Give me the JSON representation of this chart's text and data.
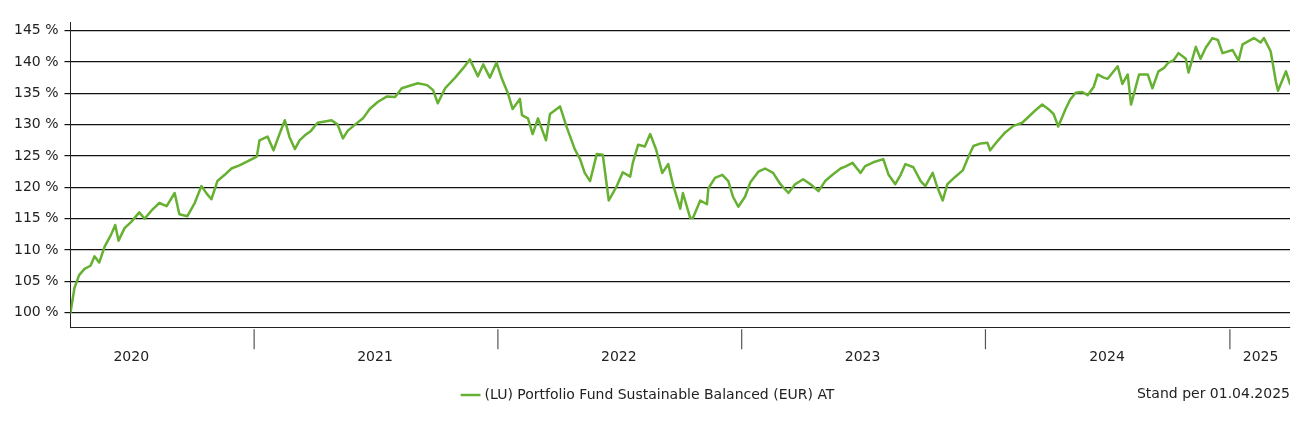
{
  "chart_data": {
    "type": "line",
    "xlim": [
      "2020-04-01",
      "2025-04-01"
    ],
    "ylim": [
      97.7,
      146.3
    ],
    "xticks": [
      {
        "value": "2020-07-01",
        "label": "2020"
      },
      {
        "value": "2021-07-01",
        "label": "2021"
      },
      {
        "value": "2022-07-01",
        "label": "2022"
      },
      {
        "value": "2023-07-01",
        "label": "2023"
      },
      {
        "value": "2024-07-01",
        "label": "2024"
      },
      {
        "value": "2025-02-16",
        "label": "2025"
      }
    ],
    "yticks": [
      {
        "value": 100,
        "label": "100 %"
      },
      {
        "value": 105,
        "label": "105 %"
      },
      {
        "value": 110,
        "label": "110 %"
      },
      {
        "value": 115,
        "label": "115 %"
      },
      {
        "value": 120,
        "label": "120 %"
      },
      {
        "value": 125,
        "label": "125 %"
      },
      {
        "value": 130,
        "label": "130 %"
      },
      {
        "value": 135,
        "label": "135 %"
      },
      {
        "value": 140,
        "label": "140 %"
      },
      {
        "value": 145,
        "label": "145 %"
      }
    ],
    "grid": "y",
    "legend": "bottom",
    "marker": "none",
    "line_style": "solid",
    "annotations": [
      "Stand per 01.04.2025"
    ],
    "x": [
      "2020-04-01",
      "2020-04-07",
      "2020-04-14",
      "2020-04-22",
      "2020-05-01",
      "2020-05-07",
      "2020-05-14",
      "2020-05-22",
      "2020-06-01",
      "2020-06-07",
      "2020-06-12",
      "2020-06-21",
      "2020-07-01",
      "2020-07-13",
      "2020-07-21",
      "2020-08-02",
      "2020-08-12",
      "2020-08-23",
      "2020-09-04",
      "2020-09-11",
      "2020-09-23",
      "2020-10-04",
      "2020-10-14",
      "2020-10-22",
      "2020-10-29",
      "2020-11-07",
      "2020-11-18",
      "2020-11-28",
      "2020-12-10",
      "2020-12-25",
      "2021-01-05",
      "2021-01-09",
      "2021-01-21",
      "2021-01-30",
      "2021-02-08",
      "2021-02-16",
      "2021-02-23",
      "2021-03-03",
      "2021-03-10",
      "2021-03-18",
      "2021-03-27",
      "2021-04-06",
      "2021-04-17",
      "2021-04-27",
      "2021-05-06",
      "2021-05-14",
      "2021-05-21",
      "2021-06-01",
      "2021-06-13",
      "2021-06-23",
      "2021-07-05",
      "2021-07-19",
      "2021-07-31",
      "2021-08-10",
      "2021-08-22",
      "2021-09-03",
      "2021-09-17",
      "2021-09-26",
      "2021-10-03",
      "2021-10-14",
      "2021-10-29",
      "2021-11-10",
      "2021-11-20",
      "2021-12-02",
      "2021-12-10",
      "2021-12-20",
      "2021-12-30",
      "2022-01-07",
      "2022-01-16",
      "2022-01-23",
      "2022-02-03",
      "2022-02-06",
      "2022-02-15",
      "2022-02-22",
      "2022-03-02",
      "2022-03-14",
      "2022-03-20",
      "2022-04-04",
      "2022-04-14",
      "2022-04-26",
      "2022-05-04",
      "2022-05-11",
      "2022-05-19",
      "2022-05-29",
      "2022-06-07",
      "2022-06-16",
      "2022-06-28",
      "2022-07-07",
      "2022-07-18",
      "2022-07-22",
      "2022-07-30",
      "2022-08-09",
      "2022-08-17",
      "2022-08-26",
      "2022-09-04",
      "2022-09-13",
      "2022-09-20",
      "2022-10-01",
      "2022-10-05",
      "2022-10-16",
      "2022-10-20",
      "2022-10-31",
      "2022-11-10",
      "2022-11-12",
      "2022-11-22",
      "2022-12-03",
      "2022-12-12",
      "2022-12-19",
      "2022-12-27",
      "2023-01-06",
      "2023-01-14",
      "2023-01-26",
      "2023-02-05",
      "2023-02-17",
      "2023-02-28",
      "2023-03-12",
      "2023-03-22",
      "2023-04-03",
      "2023-04-14",
      "2023-04-26",
      "2023-05-06",
      "2023-05-17",
      "2023-05-29",
      "2023-06-05",
      "2023-06-16",
      "2023-06-28",
      "2023-07-05",
      "2023-07-17",
      "2023-08-01",
      "2023-08-09",
      "2023-08-19",
      "2023-08-27",
      "2023-09-03",
      "2023-09-15",
      "2023-09-26",
      "2023-10-03",
      "2023-10-14",
      "2023-10-21",
      "2023-10-29",
      "2023-11-05",
      "2023-11-17",
      "2023-11-28",
      "2023-12-07",
      "2023-12-14",
      "2023-12-25",
      "2024-01-04",
      "2024-01-08",
      "2024-01-20",
      "2024-01-31",
      "2024-02-12",
      "2024-02-25",
      "2024-03-08",
      "2024-03-16",
      "2024-03-26",
      "2024-04-04",
      "2024-04-12",
      "2024-04-19",
      "2024-04-30",
      "2024-05-07",
      "2024-05-15",
      "2024-05-25",
      "2024-06-02",
      "2024-06-11",
      "2024-06-17",
      "2024-06-26",
      "2024-07-02",
      "2024-07-11",
      "2024-07-17",
      "2024-07-24",
      "2024-08-01",
      "2024-08-06",
      "2024-08-13",
      "2024-08-18",
      "2024-08-31",
      "2024-09-07",
      "2024-09-16",
      "2024-09-24",
      "2024-10-01",
      "2024-10-09",
      "2024-10-16",
      "2024-10-27",
      "2024-10-31",
      "2024-11-11",
      "2024-11-18",
      "2024-11-26",
      "2024-12-06",
      "2024-12-14",
      "2024-12-21",
      "2025-01-05",
      "2025-01-14",
      "2025-01-20",
      "2025-02-06",
      "2025-02-16",
      "2025-02-21",
      "2025-03-03",
      "2025-03-11",
      "2025-03-14",
      "2025-03-26",
      "2025-04-01"
    ],
    "series": [
      {
        "name": "(LU) Portfolio Fund Sustainable Balanced (EUR) AT",
        "color": "#66b032",
        "values": [
          100,
          104,
          106,
          107,
          107.5,
          109,
          108,
          110.5,
          112.5,
          114,
          111.5,
          113.5,
          114.5,
          116,
          115,
          116.5,
          117.5,
          117,
          119.1,
          115.7,
          115.4,
          117.5,
          120.2,
          119,
          118.1,
          121,
          122,
          123,
          123.5,
          124.3,
          124.9,
          127.5,
          128.1,
          125.9,
          128.5,
          130.7,
          128,
          126.1,
          127.5,
          128.3,
          129,
          130.3,
          130.5,
          130.7,
          130,
          127.8,
          129,
          130,
          131,
          132.5,
          133.6,
          134.5,
          134.4,
          135.8,
          136.2,
          136.6,
          136.3,
          135.5,
          133.4,
          135.8,
          137.5,
          139,
          140.4,
          137.7,
          139.6,
          137.5,
          139.9,
          137.3,
          135,
          132.5,
          134.1,
          131.5,
          131,
          128.5,
          131,
          127.5,
          131.7,
          132.9,
          129.6,
          126.1,
          124.5,
          122.3,
          121,
          125.3,
          125.2,
          117.9,
          120.2,
          122.4,
          121.7,
          123.9,
          126.8,
          126.5,
          128.5,
          126,
          122.3,
          123.7,
          120.5,
          116.6,
          119.1,
          115.1,
          115.1,
          117.9,
          117.3,
          119.8,
          121.5,
          122,
          121,
          118.5,
          116.9,
          118.5,
          120.8,
          122.5,
          123,
          122.3,
          120.5,
          119.1,
          120.5,
          121.3,
          120.5,
          119.4,
          121,
          122,
          123,
          123.3,
          123.9,
          122.3,
          123.4,
          124,
          124.5,
          122,
          120.5,
          122,
          123.7,
          123.2,
          121,
          120.2,
          122.3,
          120,
          117.9,
          120.5,
          121.7,
          122.7,
          125,
          126.6,
          127,
          127.1,
          125.9,
          127.5,
          128.8,
          129.8,
          130.3,
          131.5,
          132.3,
          133.2,
          132.5,
          131.7,
          129.7,
          132.5,
          134,
          135.1,
          135.2,
          134.7,
          136,
          138,
          137.5,
          137.3,
          138.5,
          139.3,
          136.5,
          138,
          133.2,
          136,
          138,
          138,
          135.8,
          138.5,
          139,
          139.9,
          140.3,
          141.4,
          140.5,
          138.3,
          142.4,
          140.5,
          142.3,
          143.8,
          143.5,
          141.4,
          141.9,
          140.2,
          142.8,
          143.8,
          143.1,
          143.8,
          141.7,
          136.8,
          135.4,
          138.5,
          136.5
        ]
      }
    ]
  }
}
